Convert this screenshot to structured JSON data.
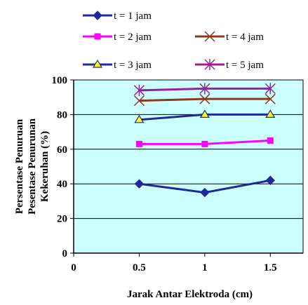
{
  "chart_data": {
    "type": "line",
    "xlabel": "Jarak Antar Elektroda (cm)",
    "ylabel_lines": [
      "Persentase Penuruan",
      "Pesentase Penurunan",
      "Kekeruhan (%)"
    ],
    "x": [
      0.5,
      1,
      1.5
    ],
    "xticks": [
      "0",
      "0.5",
      "1",
      "1.5"
    ],
    "yticks": [
      "0",
      "20",
      "40",
      "60",
      "80",
      "100"
    ],
    "xlim": [
      0,
      1.75
    ],
    "ylim": [
      0,
      100
    ],
    "grid": "horizontal",
    "plot_background": "#CCFFFF",
    "legend_position": "top",
    "series": [
      {
        "name": "t = 1 jam",
        "values": [
          40,
          35,
          42
        ],
        "color": "#1F2A9A",
        "marker": "diamond"
      },
      {
        "name": "t = 2 jam",
        "values": [
          63,
          63,
          65
        ],
        "color": "#FF00FF",
        "marker": "square"
      },
      {
        "name": "t = 3 jam",
        "values": [
          77,
          80,
          80
        ],
        "color": "#1F2A9A",
        "marker": "triangle",
        "marker_fill": "#FFFF00"
      },
      {
        "name": "t = 4 jam",
        "values": [
          88,
          89,
          89
        ],
        "color": "#8B3A1A",
        "marker": "x"
      },
      {
        "name": "t = 5 jam",
        "values": [
          94,
          95,
          95
        ],
        "color": "#9A1F9A",
        "marker": "star"
      }
    ]
  }
}
